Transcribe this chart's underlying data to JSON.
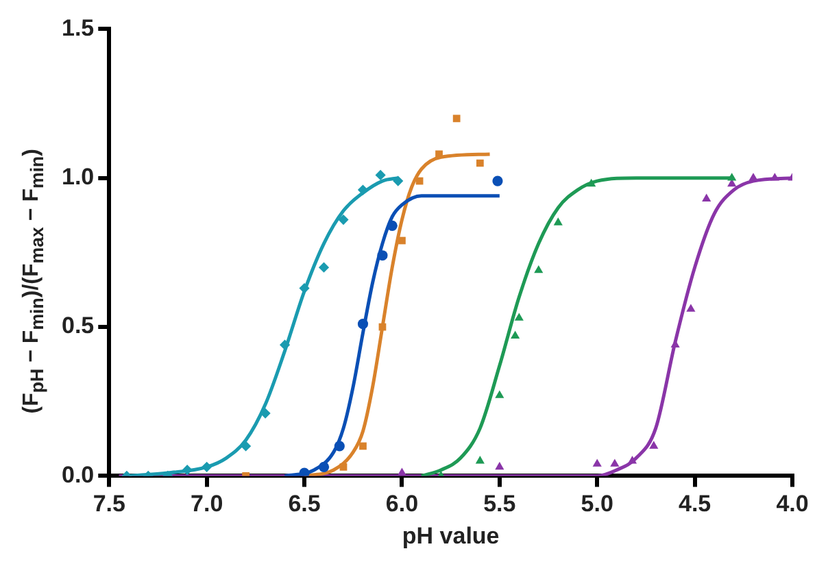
{
  "chart_data": {
    "type": "scatter",
    "xlabel": "pH value",
    "ylabel": "(F$_{pH}$ − F$_{min}$)/(F$_{max}$ − F$_{min}$)",
    "xlim": [
      7.5,
      4.0
    ],
    "xticks": [
      {
        "value": 7.5,
        "label": "7.5"
      },
      {
        "value": 7.0,
        "label": "7.0"
      },
      {
        "value": 6.5,
        "label": "6.5"
      },
      {
        "value": 6.0,
        "label": "6.0"
      },
      {
        "value": 5.5,
        "label": "5.5"
      },
      {
        "value": 5.0,
        "label": "5.0"
      },
      {
        "value": 4.5,
        "label": "4.5"
      },
      {
        "value": 4.0,
        "label": "4.0"
      }
    ],
    "ylim": [
      0,
      1.5
    ],
    "yticks": [
      {
        "value": 0,
        "label": "0.0"
      },
      {
        "value": 0.5,
        "label": "0.5"
      },
      {
        "value": 1.0,
        "label": "1.0"
      },
      {
        "value": 1.5,
        "label": "1.5"
      }
    ],
    "grid": false,
    "legend": false,
    "series": [
      {
        "type": "line",
        "marker": "none",
        "color": "#1a9bb0",
        "x": [
          7.4,
          7.2,
          7.0,
          6.9,
          6.8,
          6.7,
          6.6,
          6.5,
          6.4,
          6.3,
          6.2,
          6.1,
          6.02
        ],
        "values": [
          0.0,
          0.01,
          0.03,
          0.06,
          0.12,
          0.24,
          0.42,
          0.62,
          0.78,
          0.89,
          0.95,
          0.99,
          1.0
        ]
      },
      {
        "type": "line",
        "marker": "none",
        "color": "#0a4fb5",
        "x": [
          6.6,
          6.45,
          6.35,
          6.3,
          6.25,
          6.2,
          6.15,
          6.1,
          6.05,
          6.0,
          5.9,
          5.5
        ],
        "values": [
          0.0,
          0.02,
          0.08,
          0.16,
          0.3,
          0.48,
          0.65,
          0.78,
          0.87,
          0.91,
          0.94,
          0.94
        ]
      },
      {
        "type": "line",
        "marker": "none",
        "color": "#d9822b",
        "x": [
          6.5,
          6.35,
          6.25,
          6.2,
          6.15,
          6.1,
          6.05,
          6.0,
          5.95,
          5.9,
          5.8,
          5.55
        ],
        "values": [
          0.0,
          0.02,
          0.08,
          0.15,
          0.3,
          0.5,
          0.7,
          0.86,
          0.97,
          1.03,
          1.07,
          1.08
        ]
      },
      {
        "type": "line",
        "marker": "none",
        "color": "#1e9a55",
        "x": [
          5.9,
          5.8,
          5.7,
          5.6,
          5.5,
          5.4,
          5.3,
          5.2,
          5.1,
          5.0,
          4.8,
          4.3
        ],
        "values": [
          0.0,
          0.02,
          0.06,
          0.16,
          0.37,
          0.6,
          0.78,
          0.9,
          0.96,
          0.99,
          1.0,
          1.0
        ]
      },
      {
        "type": "line",
        "marker": "none",
        "color": "#8a35a8",
        "x": [
          7.45,
          5.0,
          4.9,
          4.8,
          4.7,
          4.6,
          4.5,
          4.4,
          4.3,
          4.2,
          4.0
        ],
        "values": [
          0.0,
          0.0,
          0.02,
          0.06,
          0.16,
          0.45,
          0.7,
          0.88,
          0.96,
          0.99,
          1.0
        ]
      },
      {
        "type": "scatter",
        "marker": "diamond",
        "color": "#1a9bb0",
        "x": [
          7.41,
          7.3,
          7.2,
          7.1,
          7.0,
          6.8,
          6.7,
          6.6,
          6.5,
          6.4,
          6.3,
          6.2,
          6.11,
          6.02
        ],
        "values": [
          0.0,
          0.0,
          0.0,
          0.02,
          0.03,
          0.1,
          0.21,
          0.44,
          0.63,
          0.7,
          0.86,
          0.96,
          1.01,
          0.99
        ]
      },
      {
        "type": "scatter",
        "marker": "circle",
        "color": "#0a4fb5",
        "x": [
          6.5,
          6.4,
          6.32,
          6.2,
          6.1,
          6.05,
          5.51
        ],
        "values": [
          0.01,
          0.03,
          0.1,
          0.51,
          0.74,
          0.84,
          0.99
        ]
      },
      {
        "type": "scatter",
        "marker": "square",
        "color": "#d9822b",
        "x": [
          6.8,
          6.3,
          6.2,
          6.1,
          6.0,
          5.91,
          5.81,
          5.72,
          5.6
        ],
        "values": [
          0.0,
          0.03,
          0.1,
          0.5,
          0.79,
          0.99,
          1.08,
          1.2,
          1.05
        ]
      },
      {
        "type": "scatter",
        "marker": "triangle",
        "color": "#1e9a55",
        "x": [
          5.8,
          5.6,
          5.5,
          5.42,
          5.4,
          5.3,
          5.2,
          5.03,
          4.31
        ],
        "values": [
          0.0,
          0.05,
          0.27,
          0.47,
          0.53,
          0.69,
          0.85,
          0.98,
          1.0
        ]
      },
      {
        "type": "scatter",
        "marker": "triangle",
        "color": "#8a35a8",
        "x": [
          6.0,
          5.5,
          5.0,
          4.91,
          4.82,
          4.71,
          4.6,
          4.52,
          4.44,
          4.31,
          4.2,
          4.09,
          4.0
        ],
        "values": [
          0.01,
          0.03,
          0.04,
          0.04,
          0.05,
          0.1,
          0.44,
          0.56,
          0.93,
          0.98,
          1.0,
          1.0,
          1.0
        ]
      }
    ]
  }
}
